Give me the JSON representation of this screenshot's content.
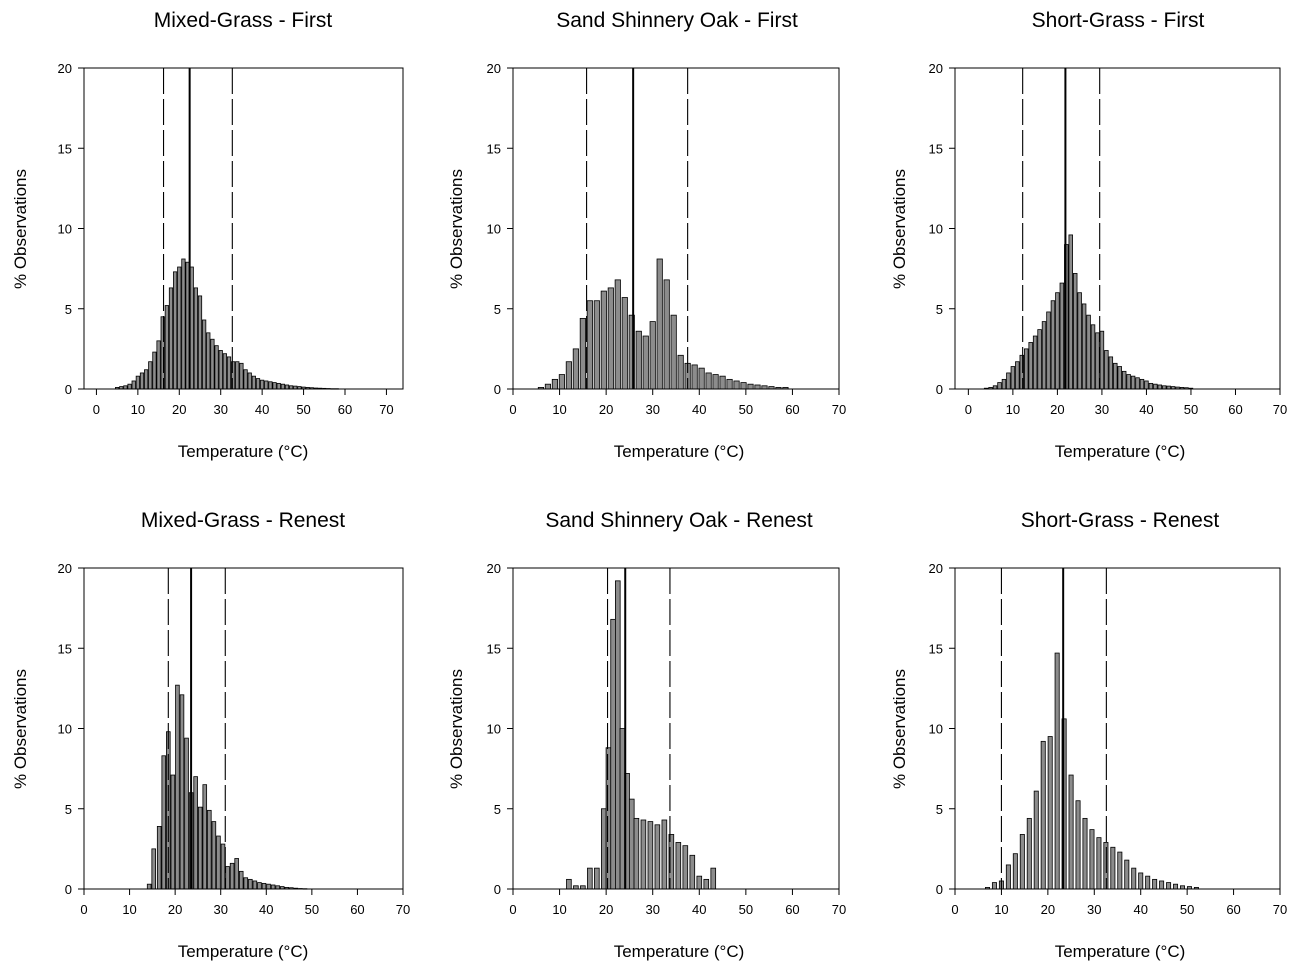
{
  "figure": {
    "charts": [
      {
        "type": "bar",
        "title": "Mixed-Grass - First",
        "xlabel": "Temperature (°C)",
        "ylabel": "% Observations",
        "xlim": [
          -3,
          74
        ],
        "ylim": [
          0,
          20
        ],
        "xticks": [
          0,
          10,
          20,
          30,
          40,
          50,
          60,
          70
        ],
        "yticks": [
          0,
          5,
          10,
          15,
          20
        ],
        "bin_width": 1,
        "x": [
          5,
          6,
          7,
          8,
          9,
          10,
          11,
          12,
          13,
          14,
          15,
          16,
          17,
          18,
          19,
          20,
          21,
          22,
          23,
          24,
          25,
          26,
          27,
          28,
          29,
          30,
          31,
          32,
          33,
          34,
          35,
          36,
          37,
          38,
          39,
          40,
          41,
          42,
          43,
          44,
          45,
          46,
          47,
          48,
          49,
          50,
          51,
          52,
          53,
          54,
          55,
          56,
          57,
          58
        ],
        "values": [
          0.1,
          0.15,
          0.2,
          0.3,
          0.5,
          0.8,
          1.0,
          1.2,
          1.7,
          2.3,
          3.0,
          4.5,
          5.2,
          6.3,
          7.3,
          7.6,
          8.1,
          7.9,
          7.6,
          6.3,
          5.8,
          4.3,
          3.5,
          3.1,
          2.7,
          2.4,
          2.2,
          2.0,
          1.7,
          1.7,
          1.6,
          1.2,
          1.0,
          0.8,
          0.65,
          0.55,
          0.5,
          0.45,
          0.4,
          0.35,
          0.3,
          0.25,
          0.2,
          0.18,
          0.15,
          0.12,
          0.1,
          0.08,
          0.06,
          0.05,
          0.04,
          0.03,
          0.02,
          0.02
        ],
        "mean_line": 22.5,
        "dashed_lines": [
          16.2,
          32.8
        ]
      },
      {
        "type": "bar",
        "title": "Sand Shinnery Oak - First",
        "xlabel": "Temperature (°C)",
        "ylabel": "% Observations",
        "xlim": [
          0,
          70
        ],
        "ylim": [
          0,
          20
        ],
        "xticks": [
          0,
          10,
          20,
          30,
          40,
          50,
          60,
          70
        ],
        "yticks": [
          0,
          5,
          10,
          15,
          20
        ],
        "bin_width": 1.4,
        "x": [
          6,
          7.5,
          9,
          10.5,
          12,
          13.5,
          15,
          16.5,
          18,
          19.5,
          21,
          22.5,
          24,
          25.5,
          27,
          28.5,
          30,
          31.5,
          33,
          34.5,
          36,
          37.5,
          39,
          40.5,
          42,
          43.5,
          45,
          46.5,
          48,
          49.5,
          51,
          52.5,
          54,
          55.5,
          57,
          58.5
        ],
        "values": [
          0.1,
          0.3,
          0.6,
          0.9,
          1.7,
          2.5,
          4.4,
          5.5,
          5.5,
          6.1,
          6.3,
          6.8,
          5.7,
          4.6,
          3.6,
          3.3,
          4.2,
          8.1,
          6.8,
          4.6,
          2.1,
          1.6,
          1.5,
          1.3,
          1.0,
          0.9,
          0.8,
          0.6,
          0.5,
          0.4,
          0.3,
          0.25,
          0.2,
          0.15,
          0.1,
          0.1
        ],
        "mean_line": 25.8,
        "dashed_lines": [
          15.8,
          37.5
        ]
      },
      {
        "type": "bar",
        "title": "Short-Grass - First",
        "xlabel": "Temperature (°C)",
        "ylabel": "% Observations",
        "xlim": [
          -3,
          70
        ],
        "ylim": [
          0,
          20
        ],
        "xticks": [
          0,
          10,
          20,
          30,
          40,
          50,
          60,
          70
        ],
        "yticks": [
          0,
          5,
          10,
          15,
          20
        ],
        "bin_width": 1,
        "x": [
          4,
          5,
          6,
          7,
          8,
          9,
          10,
          11,
          12,
          13,
          14,
          15,
          16,
          17,
          18,
          19,
          20,
          21,
          22,
          23,
          24,
          25,
          26,
          27,
          28,
          29,
          30,
          31,
          32,
          33,
          34,
          35,
          36,
          37,
          38,
          39,
          40,
          41,
          42,
          43,
          44,
          45,
          46,
          47,
          48,
          49,
          50
        ],
        "values": [
          0.05,
          0.1,
          0.2,
          0.4,
          0.6,
          1.0,
          1.4,
          1.7,
          2.1,
          2.5,
          2.9,
          3.3,
          3.7,
          4.2,
          4.8,
          5.5,
          6.0,
          6.6,
          9.0,
          9.6,
          7.2,
          6.0,
          5.3,
          4.6,
          4.0,
          3.5,
          3.6,
          2.4,
          2.0,
          1.6,
          1.4,
          1.1,
          0.9,
          0.8,
          0.7,
          0.6,
          0.5,
          0.35,
          0.3,
          0.25,
          0.2,
          0.18,
          0.15,
          0.12,
          0.1,
          0.08,
          0.05
        ],
        "mean_line": 21.8,
        "dashed_lines": [
          12.2,
          29.5
        ]
      },
      {
        "type": "bar",
        "title": "Mixed-Grass - Renest",
        "xlabel": "Temperature (°C)",
        "ylabel": "% Observations",
        "xlim": [
          0,
          70
        ],
        "ylim": [
          0,
          20
        ],
        "xticks": [
          0,
          10,
          20,
          30,
          40,
          50,
          60,
          70
        ],
        "yticks": [
          0,
          5,
          10,
          15,
          20
        ],
        "bin_width": 1,
        "x": [
          14.3,
          15.3,
          16.5,
          17.5,
          18.5,
          19.5,
          20.5,
          21.5,
          22.5,
          23.5,
          24.5,
          25.5,
          26.5,
          27.5,
          28.5,
          29.5,
          30.5,
          31.5,
          32.5,
          33.5,
          34.5,
          35.5,
          36.5,
          37.5,
          38.5,
          39.5,
          40.5,
          41.5,
          42.5,
          43.5,
          44.5,
          45.5,
          46.5,
          47.5,
          48.5
        ],
        "values": [
          0.3,
          2.5,
          3.9,
          8.3,
          9.8,
          7.1,
          12.7,
          12.1,
          9.4,
          6.0,
          7.0,
          5.1,
          6.5,
          4.9,
          4.2,
          3.3,
          2.8,
          1.4,
          1.6,
          1.9,
          1.1,
          0.7,
          0.6,
          0.5,
          0.4,
          0.35,
          0.3,
          0.25,
          0.2,
          0.15,
          0.1,
          0.08,
          0.05,
          0.03,
          0.02
        ],
        "mean_line": 23.5,
        "dashed_lines": [
          18.5,
          31.0
        ]
      },
      {
        "type": "bar",
        "title": "Sand Shinnery Oak - Renest",
        "xlabel": "Temperature (°C)",
        "ylabel": "% Observations",
        "xlim": [
          0,
          70
        ],
        "ylim": [
          0,
          20
        ],
        "xticks": [
          0,
          10,
          20,
          30,
          40,
          50,
          60,
          70
        ],
        "yticks": [
          0,
          5,
          10,
          15,
          20
        ],
        "bin_width": 1.25,
        "x": [
          12,
          13.5,
          15,
          16.5,
          18,
          19.5,
          20.5,
          21.5,
          22.5,
          23.5,
          24.5,
          25.5,
          26.5,
          28,
          29.5,
          31,
          32.5,
          34,
          35.5,
          37,
          38.5,
          40,
          41.5,
          43
        ],
        "values": [
          0.6,
          0.2,
          0.2,
          1.3,
          1.3,
          5.0,
          8.8,
          16.8,
          19.2,
          10.0,
          7.2,
          5.6,
          4.4,
          4.3,
          4.2,
          4.0,
          4.3,
          3.4,
          2.9,
          2.7,
          2.1,
          0.8,
          0.6,
          1.3
        ],
        "mean_line": 24.1,
        "dashed_lines": [
          20.3,
          33.7
        ]
      },
      {
        "type": "bar",
        "title": "Short-Grass - Renest",
        "xlabel": "Temperature (°C)",
        "ylabel": "% Observations",
        "xlim": [
          0,
          70
        ],
        "ylim": [
          0,
          20
        ],
        "xticks": [
          0,
          10,
          20,
          30,
          40,
          50,
          60,
          70
        ],
        "yticks": [
          0,
          5,
          10,
          15,
          20
        ],
        "bin_width": 1.1,
        "x": [
          7,
          8.5,
          10,
          11.5,
          13,
          14.5,
          16,
          17.5,
          19,
          20.5,
          22,
          23.5,
          25,
          26.5,
          28,
          29.5,
          31,
          32.5,
          34,
          35.5,
          37,
          38.5,
          40,
          41.5,
          43,
          44.5,
          46,
          47.5,
          49,
          50.5,
          52
        ],
        "values": [
          0.1,
          0.4,
          0.5,
          1.5,
          2.2,
          3.4,
          4.4,
          6.1,
          9.2,
          9.5,
          14.7,
          10.6,
          7.1,
          5.5,
          4.4,
          3.7,
          3.2,
          2.9,
          2.6,
          2.3,
          1.8,
          1.3,
          1.0,
          0.8,
          0.6,
          0.5,
          0.4,
          0.3,
          0.2,
          0.15,
          0.1
        ],
        "mean_line": 23.3,
        "dashed_lines": [
          10.0,
          32.6
        ]
      }
    ]
  }
}
